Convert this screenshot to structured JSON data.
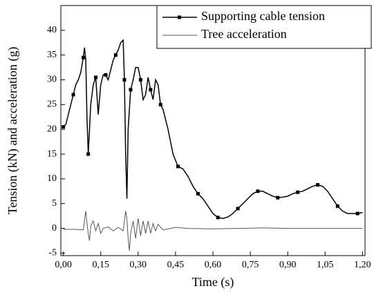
{
  "chart_data": {
    "type": "line",
    "xlabel": "Time (s)",
    "ylabel": "Tension (kN) and acceleration (g)",
    "xlim": [
      -0.01,
      1.21
    ],
    "ylim": [
      -5.5,
      45
    ],
    "xticks": [
      {
        "value": 0,
        "label": "0,00"
      },
      {
        "value": 0.15,
        "label": "0,15"
      },
      {
        "value": 0.3,
        "label": "0,30"
      },
      {
        "value": 0.45,
        "label": "0,45"
      },
      {
        "value": 0.6,
        "label": "0,60"
      },
      {
        "value": 0.75,
        "label": "0,75"
      },
      {
        "value": 0.9,
        "label": "0,90"
      },
      {
        "value": 1.05,
        "label": "1,05"
      },
      {
        "value": 1.2,
        "label": "1,20"
      }
    ],
    "yticks": [
      -5,
      0,
      5,
      10,
      15,
      20,
      25,
      30,
      35,
      40
    ],
    "legend": "upper right",
    "series": [
      {
        "name": "Supporting cable tension",
        "color": "#000000",
        "marker": "square",
        "x": [
          0,
          0.01,
          0.02,
          0.03,
          0.04,
          0.05,
          0.06,
          0.07,
          0.08,
          0.085,
          0.09,
          0.095,
          0.1,
          0.105,
          0.11,
          0.12,
          0.13,
          0.14,
          0.15,
          0.16,
          0.17,
          0.18,
          0.19,
          0.2,
          0.21,
          0.22,
          0.23,
          0.24,
          0.245,
          0.25,
          0.255,
          0.26,
          0.27,
          0.28,
          0.29,
          0.3,
          0.31,
          0.32,
          0.33,
          0.34,
          0.35,
          0.36,
          0.37,
          0.38,
          0.39,
          0.4,
          0.42,
          0.44,
          0.46,
          0.48,
          0.5,
          0.52,
          0.54,
          0.56,
          0.58,
          0.6,
          0.62,
          0.64,
          0.66,
          0.68,
          0.7,
          0.72,
          0.74,
          0.76,
          0.78,
          0.8,
          0.82,
          0.84,
          0.86,
          0.88,
          0.9,
          0.92,
          0.94,
          0.96,
          0.98,
          1.0,
          1.02,
          1.04,
          1.06,
          1.08,
          1.1,
          1.12,
          1.14,
          1.16,
          1.18,
          1.2
        ],
        "values": [
          20.5,
          21,
          23,
          25,
          27,
          29,
          30,
          31.5,
          34.5,
          36.5,
          34,
          22,
          15,
          20,
          25,
          29,
          30.5,
          23,
          29,
          31,
          31,
          30,
          32,
          34,
          35,
          36,
          37.5,
          38,
          30,
          15,
          6,
          20,
          28,
          30,
          32.5,
          32.5,
          30,
          26,
          27,
          30.5,
          28,
          26,
          30,
          29,
          25,
          24,
          20,
          15,
          12.5,
          12,
          10.5,
          8.5,
          7,
          6,
          4.5,
          3,
          2.2,
          2,
          2.3,
          3,
          4,
          5,
          6,
          7,
          7.5,
          7.5,
          7,
          6.5,
          6.2,
          6.3,
          6.5,
          7,
          7.3,
          7.5,
          8,
          8.5,
          8.8,
          8.5,
          7.5,
          6,
          4.5,
          3.5,
          3,
          3,
          3,
          3.2
        ]
      },
      {
        "name": "Tree acceleration",
        "color": "#555555",
        "x": [
          0,
          0.05,
          0.08,
          0.09,
          0.095,
          0.1,
          0.105,
          0.11,
          0.12,
          0.13,
          0.14,
          0.15,
          0.16,
          0.18,
          0.2,
          0.22,
          0.24,
          0.25,
          0.255,
          0.26,
          0.265,
          0.27,
          0.28,
          0.29,
          0.3,
          0.31,
          0.32,
          0.33,
          0.34,
          0.35,
          0.36,
          0.37,
          0.38,
          0.4,
          0.45,
          0.5,
          0.6,
          0.7,
          0.8,
          0.9,
          1.0,
          1.1,
          1.2
        ],
        "values": [
          -0.2,
          -0.2,
          -0.3,
          3.5,
          1,
          -1,
          -2.5,
          0.5,
          1.5,
          -0.5,
          1,
          -1,
          0,
          0.3,
          -0.5,
          0.2,
          -0.5,
          3.5,
          2,
          -2,
          -4.5,
          -1,
          1.5,
          -2,
          2,
          -1.5,
          1.5,
          -1,
          1.5,
          -1,
          1,
          -0.5,
          0.8,
          -0.3,
          0.2,
          0,
          -0.1,
          0,
          0.1,
          0,
          0,
          0,
          0
        ]
      }
    ]
  }
}
